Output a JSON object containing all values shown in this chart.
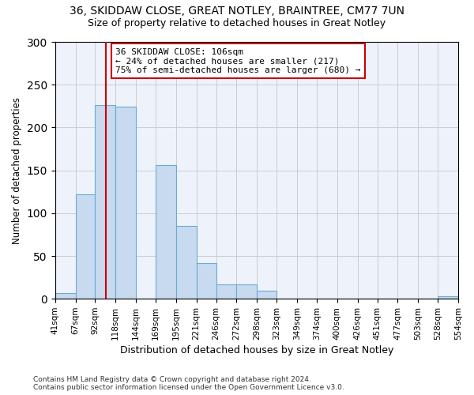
{
  "title_line1": "36, SKIDDAW CLOSE, GREAT NOTLEY, BRAINTREE, CM77 7UN",
  "title_line2": "Size of property relative to detached houses in Great Notley",
  "xlabel": "Distribution of detached houses by size in Great Notley",
  "ylabel": "Number of detached properties",
  "bin_edges": [
    41,
    67,
    92,
    118,
    144,
    169,
    195,
    221,
    246,
    272,
    298,
    323,
    349,
    374,
    400,
    426,
    451,
    477,
    503,
    528,
    554
  ],
  "bar_heights": [
    7,
    122,
    226,
    224,
    0,
    156,
    85,
    42,
    17,
    17,
    9,
    0,
    0,
    0,
    0,
    0,
    0,
    0,
    0,
    3
  ],
  "bar_color": "#c8daf0",
  "bar_edge_color": "#6aaad4",
  "property_size": 106,
  "vline_color": "#cc0000",
  "annotation_text": "36 SKIDDAW CLOSE: 106sqm\n← 24% of detached houses are smaller (217)\n75% of semi-detached houses are larger (680) →",
  "annotation_box_color": "#ffffff",
  "annotation_box_edge_color": "#cc0000",
  "ylim": [
    0,
    300
  ],
  "yticks": [
    0,
    50,
    100,
    150,
    200,
    250,
    300
  ],
  "footnote": "Contains HM Land Registry data © Crown copyright and database right 2024.\nContains public sector information licensed under the Open Government Licence v3.0.",
  "grid_color": "#c8c8c8",
  "background_color": "#ffffff",
  "plot_bg_color": "#eef2fa"
}
